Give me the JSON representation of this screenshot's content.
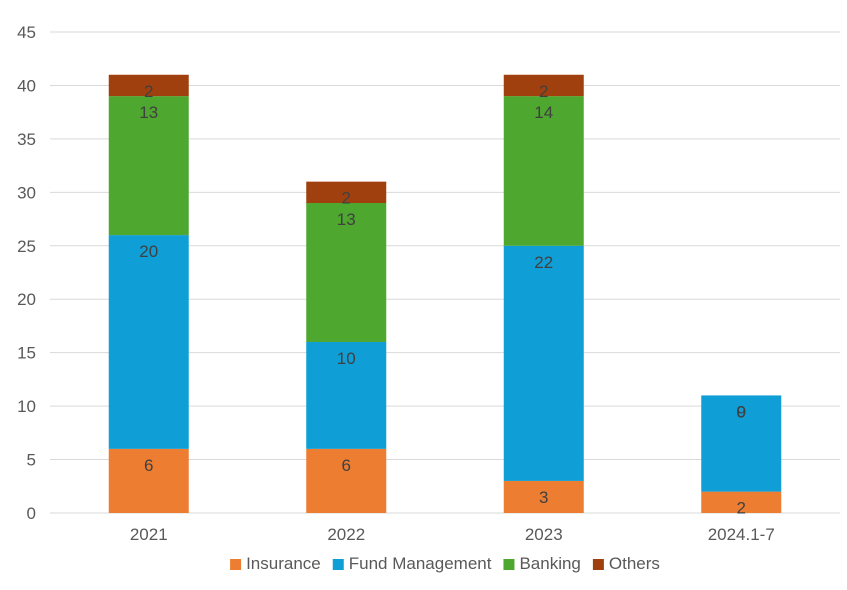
{
  "chart_data": {
    "type": "bar",
    "stacked": true,
    "categories": [
      "2021",
      "2022",
      "2023",
      "2024.1-7"
    ],
    "series": [
      {
        "name": "Insurance",
        "values": [
          6,
          6,
          3,
          2
        ],
        "color": "#ED7D31"
      },
      {
        "name": "Fund Management",
        "values": [
          20,
          10,
          22,
          9
        ],
        "color": "#0F9ED5"
      },
      {
        "name": "Banking",
        "values": [
          13,
          13,
          14,
          0
        ],
        "color": "#4EA72E"
      },
      {
        "name": "Others",
        "values": [
          2,
          2,
          2,
          0
        ],
        "color": "#A0400F"
      }
    ],
    "title": "",
    "xlabel": "",
    "ylabel": "",
    "ylim": [
      0,
      45
    ],
    "yticks": [
      0,
      5,
      10,
      15,
      20,
      25,
      30,
      35,
      40,
      45
    ],
    "grid": true,
    "legend": "bottom",
    "colors": {
      "gridline": "#D9D9D9",
      "tick_text": "#595959",
      "label_text": "#404040"
    }
  }
}
